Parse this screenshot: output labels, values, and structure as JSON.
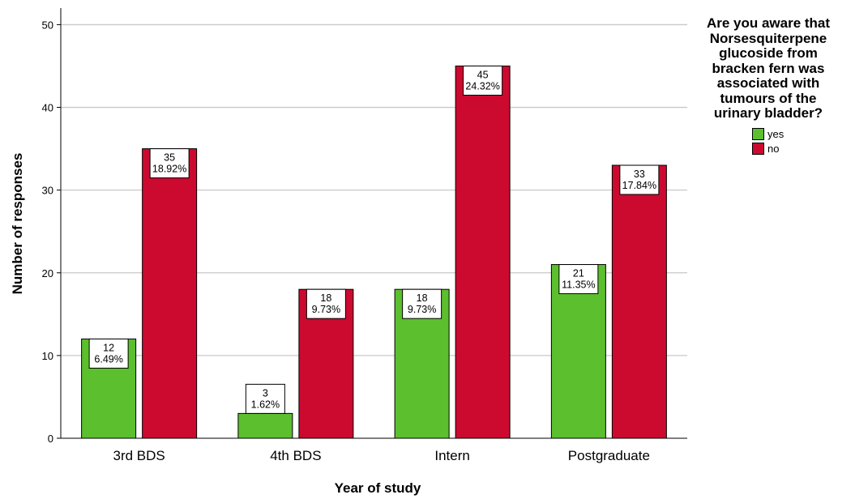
{
  "chart_data": {
    "type": "bar",
    "xlabel": "Year of study",
    "ylabel": "Number of responses",
    "ylim": [
      0,
      52
    ],
    "yticks": [
      0,
      10,
      20,
      30,
      40,
      50
    ],
    "grid": true,
    "legend_position": "top-right",
    "categories": [
      "3rd BDS",
      "4th BDS",
      "Intern",
      "Postgraduate"
    ],
    "series": [
      {
        "name": "yes",
        "color": "#5bbf2e",
        "values": [
          12,
          3,
          18,
          21
        ],
        "labels": [
          "6.49%",
          "1.62%",
          "9.73%",
          "11.35%"
        ]
      },
      {
        "name": "no",
        "color": "#cc0a2f",
        "values": [
          35,
          18,
          45,
          33
        ],
        "labels": [
          "18.92%",
          "9.73%",
          "24.32%",
          "17.84%"
        ]
      }
    ],
    "legend_title": "Are you aware that Norsesquiterpene glucoside from bracken fern was associated with tumours of the urinary bladder?",
    "legend_title_lines": [
      "Are you aware that",
      "Norsesquiterpene",
      "glucoside from",
      "bracken fern was",
      "associated with",
      "tumours of the",
      "urinary bladder?"
    ]
  }
}
